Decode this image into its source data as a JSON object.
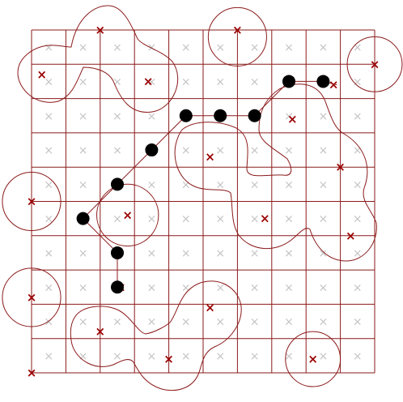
{
  "colors": {
    "background": "#ffffff",
    "grid": "#8b1a1a",
    "red_mark": "#9b0000",
    "grey_mark": "#c4c4c4",
    "node": "#000000",
    "circle": "#8b1a1a"
  },
  "symbols": {
    "red_mark": "×",
    "grey_mark": "×"
  },
  "grid": {
    "columns": 10,
    "rows": 10
  },
  "path_nodes": [
    {
      "col": 7.5,
      "row": 1.5
    },
    {
      "col": 8.5,
      "row": 1.5
    },
    {
      "col": 6.5,
      "row": 2.5
    },
    {
      "col": 5.5,
      "row": 2.5
    },
    {
      "col": 4.5,
      "row": 2.5
    },
    {
      "col": 3.5,
      "row": 3.5
    },
    {
      "col": 2.5,
      "row": 4.5
    },
    {
      "col": 1.5,
      "row": 5.5
    },
    {
      "col": 2.5,
      "row": 6.5
    },
    {
      "col": 2.5,
      "row": 7.5
    }
  ],
  "red_marks": [
    {
      "col": 2.0,
      "row": 0.0
    },
    {
      "col": 6.0,
      "row": 0.0
    },
    {
      "col": 10.0,
      "row": 1.0
    },
    {
      "col": 0.3,
      "row": 1.3
    },
    {
      "col": 3.4,
      "row": 1.5
    },
    {
      "col": 8.8,
      "row": 1.6
    },
    {
      "col": 7.6,
      "row": 2.6
    },
    {
      "col": 5.2,
      "row": 3.7
    },
    {
      "col": 9.0,
      "row": 4.0
    },
    {
      "col": 0.0,
      "row": 5.0
    },
    {
      "col": 2.8,
      "row": 5.4
    },
    {
      "col": 6.8,
      "row": 5.5
    },
    {
      "col": 9.3,
      "row": 6.0
    },
    {
      "col": 2.6,
      "row": 7.5
    },
    {
      "col": 0.0,
      "row": 7.8
    },
    {
      "col": 5.2,
      "row": 8.1
    },
    {
      "col": 2.0,
      "row": 8.8
    },
    {
      "col": 4.0,
      "row": 9.6
    },
    {
      "col": 8.2,
      "row": 9.6
    },
    {
      "col": 0.0,
      "row": 10.0
    }
  ],
  "circles": [
    {
      "col": 6.0,
      "row": 0.2,
      "radius": 0.85
    },
    {
      "col": 10.0,
      "row": 1.0,
      "radius": 0.8
    },
    {
      "col": 0.0,
      "row": 5.0,
      "radius": 0.85
    },
    {
      "col": 2.8,
      "row": 5.4,
      "radius": 0.9
    },
    {
      "col": 0.0,
      "row": 7.8,
      "radius": 0.85
    },
    {
      "col": 8.2,
      "row": 9.6,
      "radius": 0.8
    }
  ]
}
